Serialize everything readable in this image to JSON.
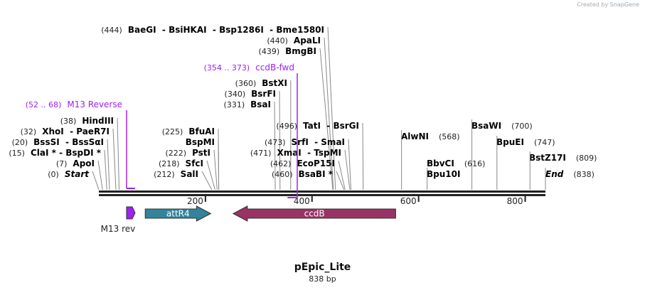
{
  "credit": {
    "prefix": "Created by",
    "brand": "SnapGene"
  },
  "plasmid": {
    "name": "pEpic_Lite",
    "length_label": "838 bp",
    "length": 838
  },
  "ruler_ticks": [
    "200",
    "400",
    "600",
    "800"
  ],
  "enzyme_labels": [
    {
      "pos": "(444)",
      "names": "BaeGI  - BsiHKAI  - Bsp1286I  - Bme1580I",
      "cut": 444
    },
    {
      "pos": "(440)",
      "names": "ApaLI",
      "cut": 440
    },
    {
      "pos": "(439)",
      "names": "BmgBI",
      "cut": 439
    },
    {
      "pos": "(360)",
      "names": "BstXI",
      "cut": 360
    },
    {
      "pos": "(340)",
      "names": "BsrFI",
      "cut": 340
    },
    {
      "pos": "(331)",
      "names": "BsaI",
      "cut": 331
    },
    {
      "pos": "(38)",
      "names": "HindIII",
      "cut": 38
    },
    {
      "pos": "(32)",
      "names": "XhoI  - PaeR7I",
      "cut": 32
    },
    {
      "pos": "(20)",
      "names": "BssSI  - BssSαI",
      "cut": 20
    },
    {
      "pos": "(15)",
      "names": "ClaI * - BspDI *",
      "cut": 15
    },
    {
      "pos": "(7)",
      "names": "ApoI",
      "cut": 7
    },
    {
      "pos": "(0)",
      "names": "Start",
      "cut": 0
    },
    {
      "pos": "(225)",
      "names": "BfuAI",
      "cut": 225
    },
    {
      "pos": "",
      "names": "BspMI",
      "cut": 225
    },
    {
      "pos": "(222)",
      "names": "PstI",
      "cut": 222
    },
    {
      "pos": "(218)",
      "names": "SfcI",
      "cut": 218
    },
    {
      "pos": "(212)",
      "names": "SalI",
      "cut": 212
    },
    {
      "pos": "(496)",
      "names": "TatI  - BsrGI",
      "cut": 496
    },
    {
      "pos": "(473)",
      "names": "SrfI  - SmaI",
      "cut": 473
    },
    {
      "pos": "(471)",
      "names": "XmaI  - TspMI",
      "cut": 471
    },
    {
      "pos": "(462)",
      "names": "EcoP15I",
      "cut": 462
    },
    {
      "pos": "(460)",
      "names": "BsaBI *",
      "cut": 460
    },
    {
      "pos": "(568)",
      "names": "AlwNI",
      "cut": 568
    },
    {
      "pos": "(700)",
      "names": "BsaWI",
      "cut": 700
    },
    {
      "pos": "(616)",
      "names": "BbvCI",
      "cut": 616
    },
    {
      "pos": "",
      "names": "Bpu10I",
      "cut": 616
    },
    {
      "pos": "(747)",
      "names": "BpuEI",
      "cut": 747
    },
    {
      "pos": "(809)",
      "names": "BstZ17I",
      "cut": 809
    },
    {
      "pos": "(838)",
      "names": "End",
      "cut": 838
    }
  ],
  "primers": [
    {
      "range": "(52 .. 68)",
      "name": "M13 Reverse",
      "start": 52,
      "end": 68,
      "color": "#a020f0"
    },
    {
      "range": "(354 .. 373)",
      "name": "ccdB-fwd",
      "start": 354,
      "end": 373,
      "color": "#a020f0"
    }
  ],
  "features": [
    {
      "name": "M13 rev",
      "start": 52,
      "end": 68,
      "direction": "forward",
      "color": "#a020f0",
      "label_below": true
    },
    {
      "name": "attR4",
      "start": 87,
      "end": 210,
      "direction": "forward",
      "color": "#31849b"
    },
    {
      "name": "ccdB",
      "start": 252,
      "end": 557,
      "direction": "reverse",
      "color": "#993366"
    }
  ]
}
